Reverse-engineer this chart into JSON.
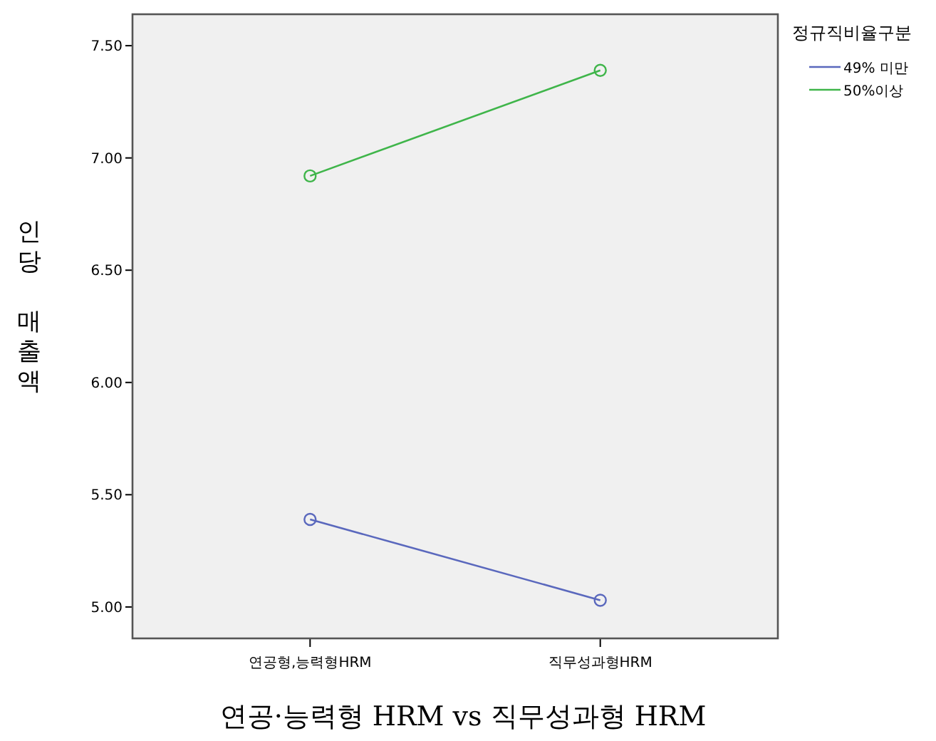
{
  "chart_data": {
    "type": "line",
    "xlabel": "연공·능력형 HRM vs 직무성과형 HRM",
    "ylabel": "인당 매출액",
    "legend_title": "정규직비율구분",
    "categories": [
      "연공형,능력형HRM",
      "직무성과형HRM"
    ],
    "series": [
      {
        "name": "49% 미만",
        "color": "#5a68bd",
        "values": [
          5.39,
          5.03
        ]
      },
      {
        "name": "50%이상",
        "color": "#3fb54a",
        "values": [
          6.92,
          7.39
        ]
      }
    ],
    "ylim": [
      4.86,
      7.64
    ],
    "yticks": [
      {
        "value": 5,
        "label": "5.00"
      },
      {
        "value": 5.5,
        "label": "5.50"
      },
      {
        "value": 6,
        "label": "6.00"
      },
      {
        "value": 6.5,
        "label": "6.50"
      },
      {
        "value": 7,
        "label": "7.00"
      },
      {
        "value": 7.5,
        "label": "7.50"
      }
    ],
    "grid": false,
    "legend": "top right",
    "marker": "circle",
    "line_style": "solid"
  }
}
